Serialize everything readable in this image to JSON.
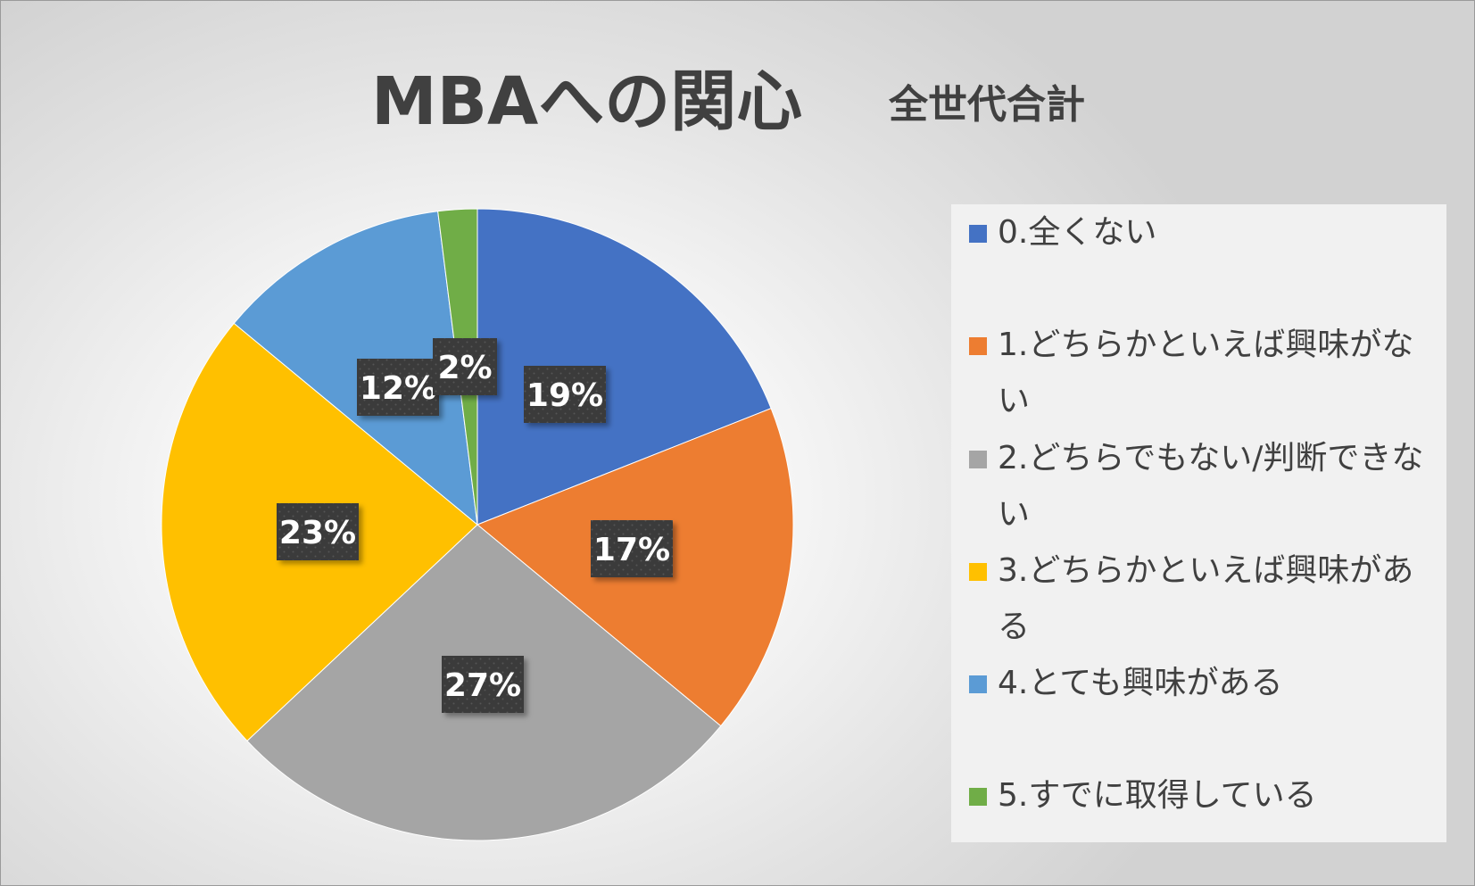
{
  "chart_data": {
    "type": "pie",
    "title": "MBAへの関心",
    "subtitle": "全世代合計",
    "categories": [
      "0.全くない",
      "1.どちらかといえば興味がない",
      "2.どちらでもない/判断できない",
      "3.どちらかといえば興味がある",
      "4.とても興味がある",
      "5.すでに取得している"
    ],
    "values": [
      19,
      17,
      27,
      23,
      12,
      2
    ],
    "data_labels": [
      "19%",
      "17%",
      "27%",
      "23%",
      "12%",
      "2%"
    ],
    "unit": "%",
    "legend_position": "right",
    "start_angle": "12 o'clock, clockwise"
  },
  "colors": {
    "series": [
      "#4472C4",
      "#ED7D31",
      "#A5A5A5",
      "#FFC000",
      "#5B9BD5",
      "#70AD47"
    ],
    "title_text": "#404040",
    "label_background": "#3a3a3a",
    "label_text": "#ffffff",
    "legend_background": "#f1f1f1"
  }
}
